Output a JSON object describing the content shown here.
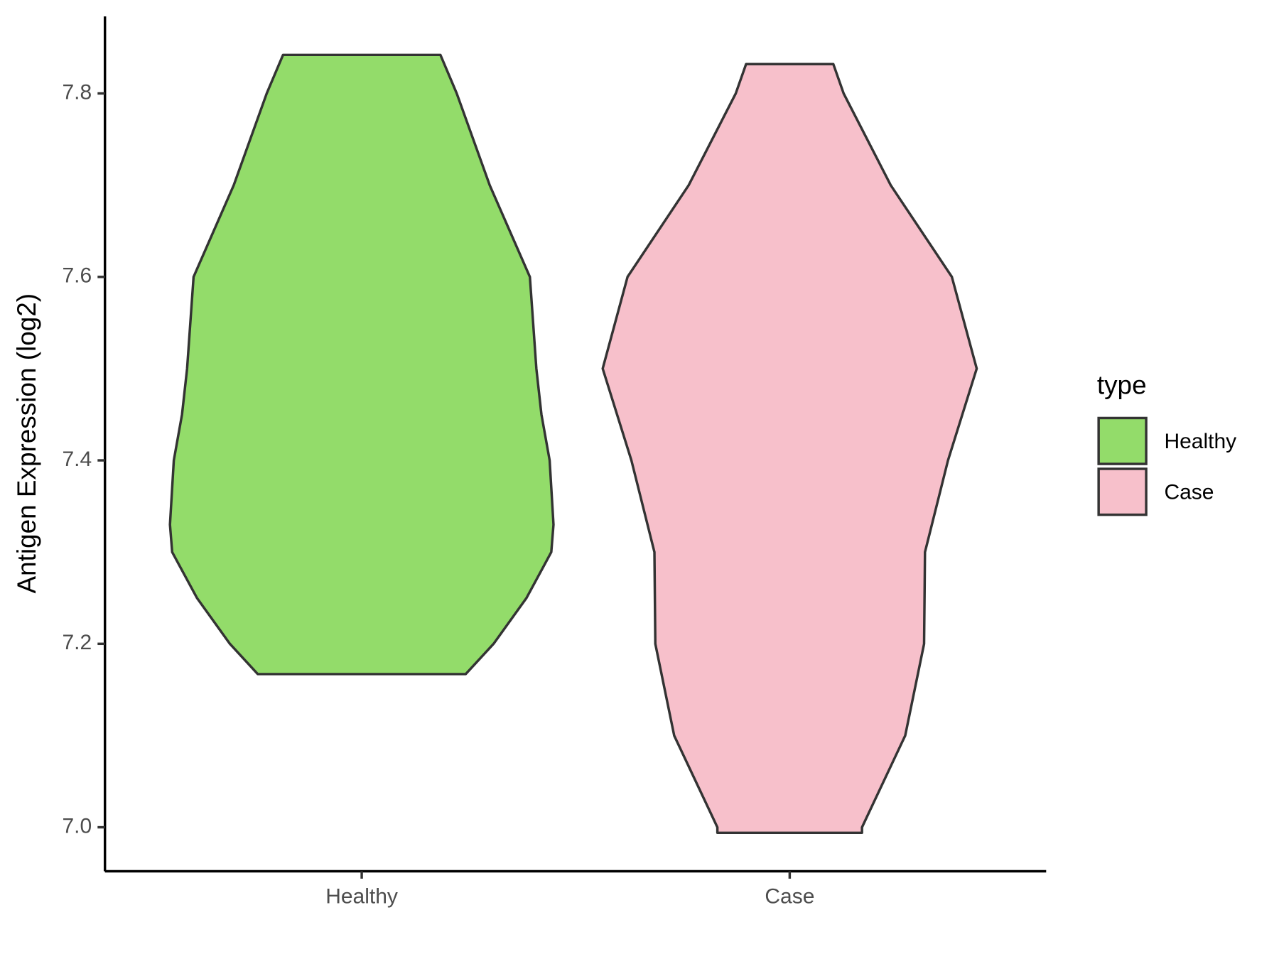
{
  "chart_data": {
    "type": "violin",
    "y_label": "Antigen Expression (log2)",
    "categories": [
      "Healthy",
      "Case"
    ],
    "legend_title": "type",
    "legend_position": "right",
    "ylim": [
      6.952,
      7.884
    ],
    "yticks": [
      {
        "value": 7,
        "label": "7.0"
      },
      7.2,
      7.4,
      7.6,
      7.8
    ],
    "series": [
      {
        "name": "Healthy",
        "color": "#93dc6a",
        "y": [
          7.842,
          7.8,
          7.7,
          7.6,
          7.5,
          7.45,
          7.4,
          7.33,
          7.3,
          7.25,
          7.2,
          7.167
        ],
        "half_width": [
          0.184,
          0.222,
          0.299,
          0.393,
          0.408,
          0.42,
          0.439,
          0.448,
          0.443,
          0.385,
          0.308,
          0.243
        ]
      },
      {
        "name": "Case",
        "color": "#f7c0cb",
        "y": [
          7.832,
          7.8,
          7.7,
          7.6,
          7.5,
          7.4,
          7.3,
          7.2,
          7.1,
          7.0,
          6.994
        ],
        "half_width": [
          0.102,
          0.126,
          0.236,
          0.379,
          0.437,
          0.37,
          0.316,
          0.314,
          0.27,
          0.169,
          0.169
        ]
      }
    ]
  }
}
